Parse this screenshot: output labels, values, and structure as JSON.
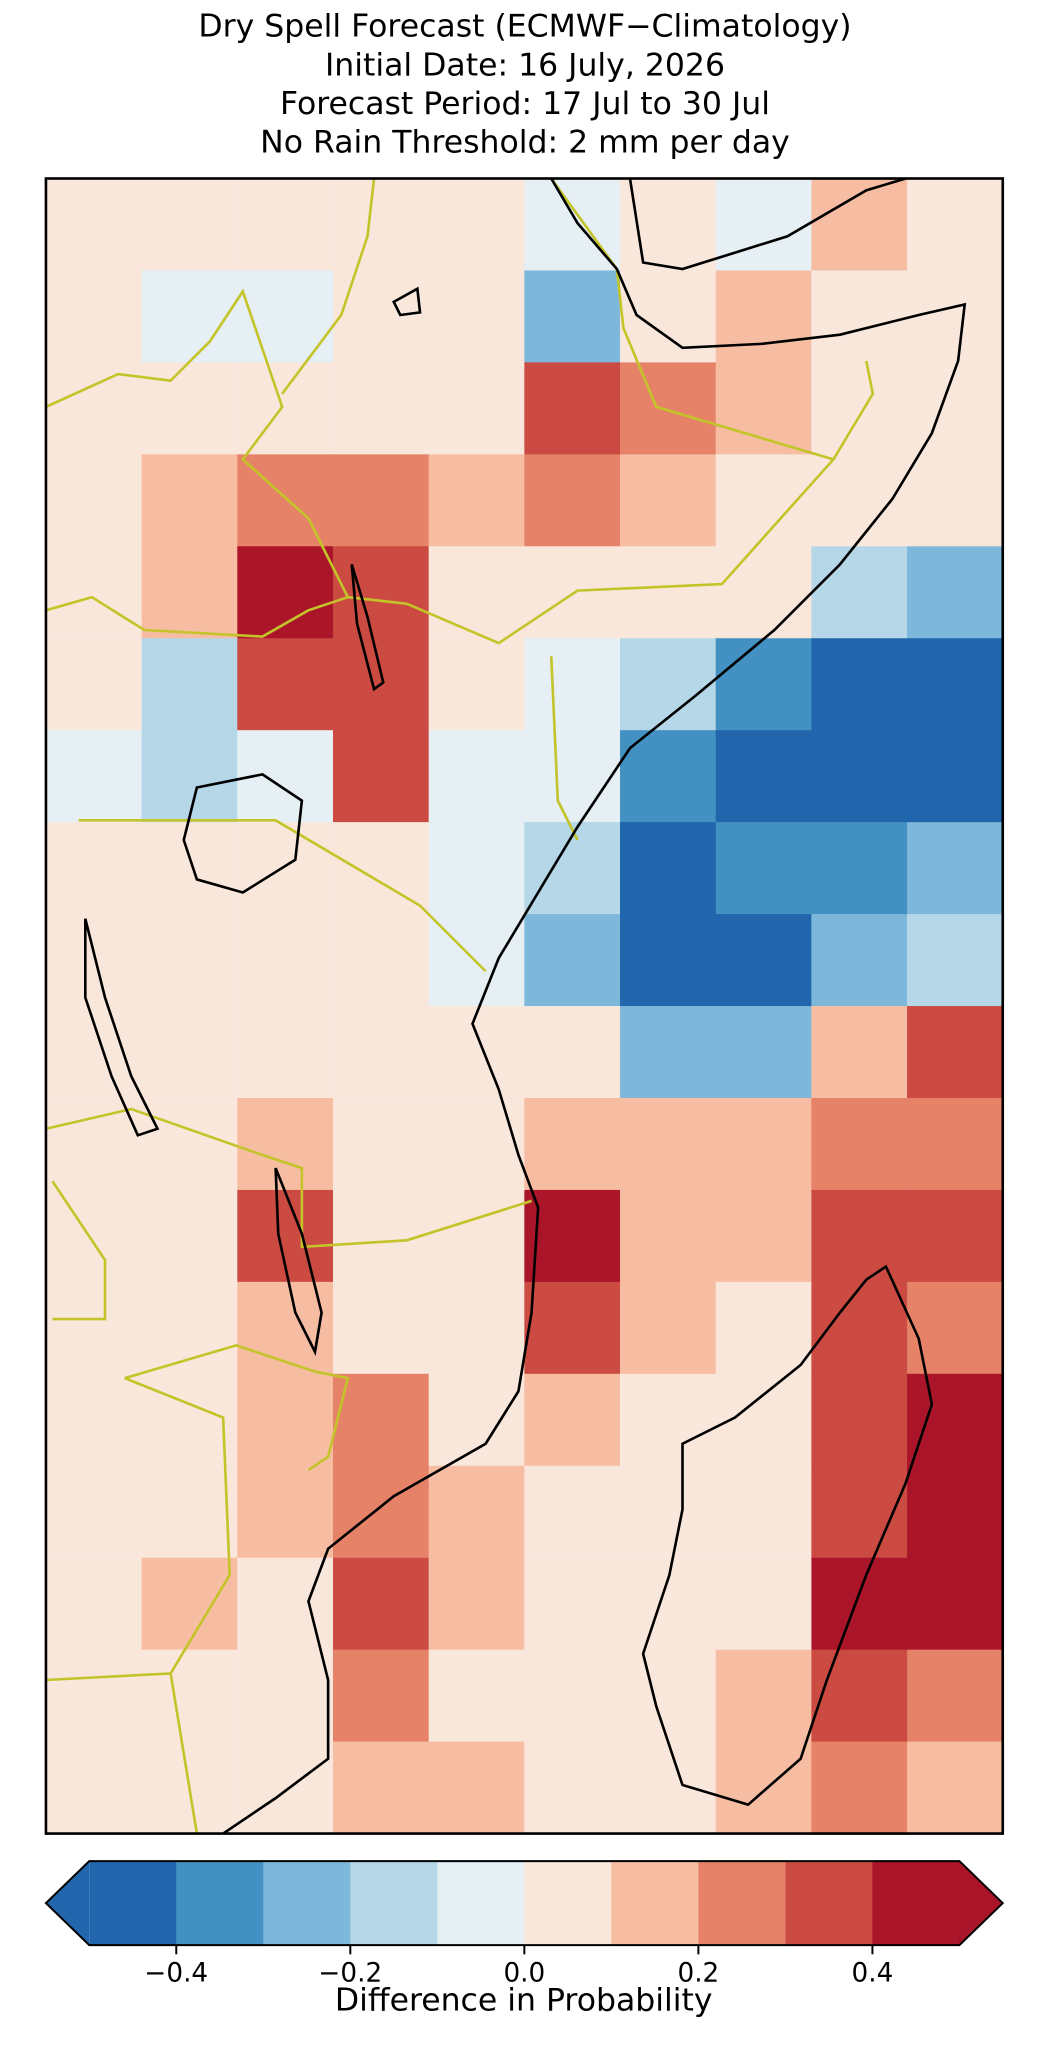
{
  "title_lines": [
    "Dry Spell Forecast (ECMWF−Climatology)",
    "Initial Date: 16 July, 2026",
    "Forecast Period: 17 Jul to 30 Jul",
    "No Rain Threshold: 2 mm per day"
  ],
  "map": {
    "grid": [
      [
        0.05,
        0.02,
        0.05,
        0.05,
        0.05,
        -0.1,
        0.0,
        -0.1,
        0.1,
        0.05
      ],
      [
        0.0,
        -0.05,
        -0.1,
        0.05,
        0.05,
        -0.3,
        0.05,
        0.1,
        0.05,
        0.05
      ],
      [
        0.05,
        0.05,
        0.0,
        0.05,
        0.05,
        0.3,
        0.25,
        0.1,
        0.05,
        0.05
      ],
      [
        0.05,
        0.1,
        0.2,
        0.2,
        0.1,
        0.2,
        0.1,
        0.05,
        0.05,
        0.05
      ],
      [
        0.0,
        0.1,
        0.4,
        0.3,
        0.05,
        0.05,
        0.0,
        0.0,
        -0.15,
        -0.3
      ],
      [
        0.05,
        -0.15,
        0.35,
        0.3,
        0.0,
        -0.05,
        -0.15,
        -0.4,
        -0.45,
        -0.45
      ],
      [
        -0.1,
        -0.15,
        -0.1,
        0.3,
        -0.05,
        -0.1,
        -0.4,
        -0.45,
        -0.45,
        -0.45
      ],
      [
        0.05,
        0.05,
        0.05,
        0.05,
        -0.05,
        -0.2,
        -0.45,
        -0.4,
        -0.4,
        -0.3
      ],
      [
        0.05,
        0.05,
        0.05,
        0.0,
        -0.05,
        -0.3,
        -0.45,
        -0.45,
        -0.3,
        -0.15
      ],
      [
        0.05,
        0.05,
        0.05,
        0.05,
        0.0,
        0.05,
        -0.3,
        -0.25,
        0.1,
        0.3
      ],
      [
        0.05,
        0.05,
        0.1,
        0.05,
        0.05,
        0.1,
        0.1,
        0.15,
        0.25,
        0.2
      ],
      [
        0.05,
        0.05,
        0.35,
        0.05,
        0.05,
        0.4,
        0.15,
        0.1,
        0.3,
        0.3
      ],
      [
        0.05,
        0.05,
        0.1,
        0.05,
        0.05,
        0.3,
        0.1,
        0.05,
        0.35,
        0.25
      ],
      [
        0.05,
        0.05,
        0.15,
        0.2,
        0.05,
        0.1,
        0.05,
        0.05,
        0.3,
        0.45
      ],
      [
        0.05,
        0.05,
        0.1,
        0.25,
        0.15,
        0.05,
        0.05,
        0.05,
        0.35,
        0.45
      ],
      [
        0.05,
        0.15,
        0.05,
        0.35,
        0.1,
        0.05,
        0.05,
        0.05,
        0.4,
        0.4
      ],
      [
        0.05,
        0.05,
        0.05,
        0.2,
        0.05,
        0.05,
        0.05,
        0.1,
        0.3,
        0.2
      ],
      [
        0.05,
        0.05,
        0.05,
        0.1,
        0.1,
        0.05,
        0.05,
        0.1,
        0.25,
        0.1
      ]
    ]
  },
  "colorbar": {
    "label": "Difference in Probability",
    "levels": [
      -0.5,
      -0.4,
      -0.3,
      -0.2,
      -0.1,
      0,
      0.1,
      0.2,
      0.3,
      0.4,
      0.5
    ],
    "colors": [
      "#2166ac",
      "#4291c2",
      "#7db8da",
      "#b6d7e8",
      "#e5eff4",
      "#fae7dc",
      "#f7bda2",
      "#e58268",
      "#cb4a42",
      "#ab1529"
    ],
    "ticks": [
      {
        "value": -0.4,
        "label": "−0.4"
      },
      {
        "value": -0.2,
        "label": "−0.2"
      },
      {
        "value": 0,
        "label": "0.0"
      },
      0.2,
      0.4
    ]
  }
}
